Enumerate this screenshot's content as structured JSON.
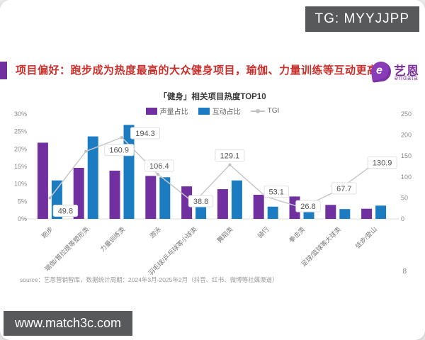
{
  "watermarks": {
    "tg": "TG: MYYJJPP",
    "site": "www.match3c.com"
  },
  "header": {
    "title": "项目偏好：跑步成为热度最高的大众健身项目，瑜伽、力量训练等互动更高",
    "logo": {
      "brand": "艺恩",
      "sub": "endata",
      "mark": "e"
    }
  },
  "chart_data": {
    "type": "bar",
    "title": "「健身」相关项目热度TOP10",
    "categories": [
      "跑步",
      "瑜伽/普拉提等塑形类",
      "力量训练类",
      "游泳",
      "羽毛球/乒乓球等小球类",
      "舞蹈类",
      "骑行",
      "拳击类",
      "足球/篮球等大球类",
      "徒步/登山"
    ],
    "series": [
      {
        "name": "声量占比",
        "type": "bar",
        "color": "#7030a0",
        "values": [
          21.8,
          14.6,
          13.8,
          12.3,
          9.3,
          8.5,
          6.9,
          6.4,
          4.0,
          2.9
        ]
      },
      {
        "name": "互动占比",
        "type": "bar",
        "color": "#1c7cc2",
        "values": [
          11.0,
          23.6,
          26.9,
          11.9,
          3.5,
          11.0,
          3.5,
          2.0,
          2.8,
          3.8
        ]
      },
      {
        "name": "TGI",
        "type": "line",
        "color": "#c8c8c8",
        "values": [
          49.8,
          160.9,
          194.3,
          106.4,
          38.8,
          129.1,
          53.1,
          26.8,
          67.7,
          130.9
        ]
      }
    ],
    "left_axis": {
      "unit": "%",
      "ticks": [
        "30%",
        "25%",
        "20%",
        "15%",
        "10%",
        "5%",
        "0%"
      ],
      "max": 30
    },
    "right_axis": {
      "ticks": [
        "250",
        "200",
        "150",
        "100",
        "50",
        "0"
      ],
      "max": 250
    },
    "legend_position": "top",
    "grid": false
  },
  "footer": {
    "source": "source：艺恩营销智库，数据统计周期：2024年3月-2025年2月（抖音、红书、微博等社媒渠道）",
    "page": "8"
  }
}
